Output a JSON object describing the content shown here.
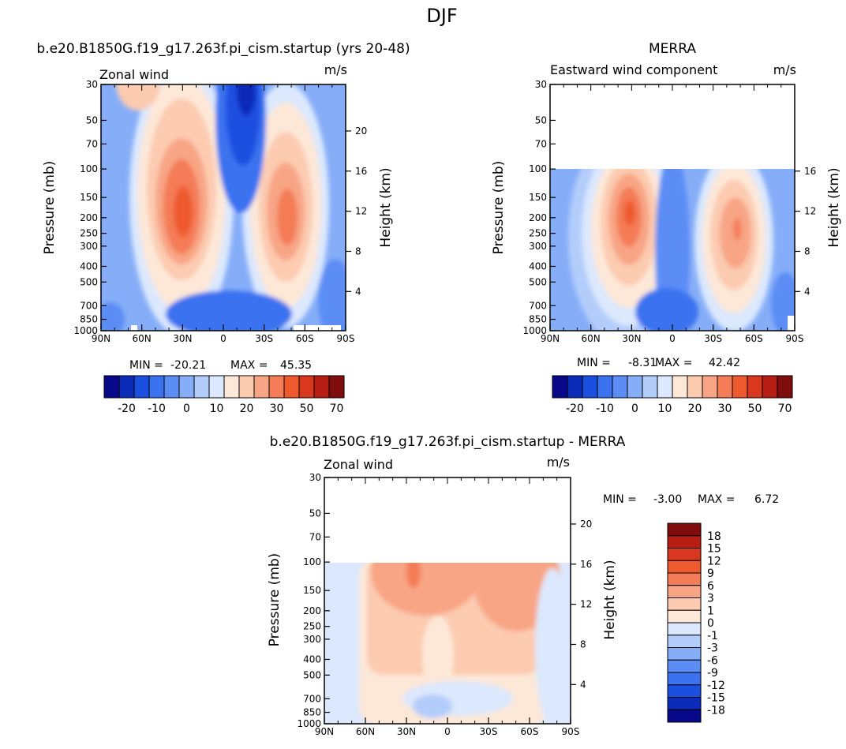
{
  "figure_title": "DJF",
  "colors": {
    "main": [
      "#08088a",
      "#0a2cb8",
      "#1a4fe0",
      "#3a72f0",
      "#5b8df5",
      "#86aef8",
      "#b3cdfb",
      "#dbe8fd",
      "#fde8d8",
      "#fccbb0",
      "#f8a585",
      "#f47c56",
      "#ee5a2e",
      "#d9381e",
      "#b71d12",
      "#800d0d"
    ],
    "diff": [
      "#08088a",
      "#0a2cb8",
      "#1a4fe0",
      "#3a72f0",
      "#5b8df5",
      "#86aef8",
      "#b3cdfb",
      "#dbe8fd",
      "#fde8d8",
      "#fccbb0",
      "#f8a585",
      "#f47c56",
      "#ee5a2e",
      "#d9381e",
      "#b71d12",
      "#800d0d"
    ]
  },
  "chart_data": [
    {
      "type": "heatmap",
      "title": "b.e20.B1850G.f19_g17.263f.pi_cism.startup (yrs 20-48)",
      "left_label": "Zonal wind",
      "units": "m/s",
      "xlabel": "",
      "ylabel": "Pressure (mb)",
      "ylabel_right": "Height (km)",
      "x_ticks": [
        "90N",
        "60N",
        "30N",
        "0",
        "30S",
        "60S",
        "90S"
      ],
      "y_ticks": [
        "30",
        "50",
        "70",
        "100",
        "150",
        "200",
        "250",
        "300",
        "400",
        "500",
        "700",
        "850",
        "1000"
      ],
      "y_ticks_right": [
        "20",
        "16",
        "12",
        "8",
        "4"
      ],
      "stats": {
        "min_label": "MIN =",
        "min": "-20.21",
        "max_label": "MAX =",
        "max": "45.35"
      },
      "colorbar": {
        "orientation": "horizontal",
        "labels": [
          "-20",
          "-10",
          "0",
          "10",
          "20",
          "30",
          "50",
          "70"
        ]
      },
      "data_top_pressure": 30,
      "jets": [
        {
          "lat": 30,
          "pressure": 200,
          "peak": 45.35
        },
        {
          "lat": -48,
          "pressure": 210,
          "peak": 36
        }
      ],
      "easterly": {
        "lat": -12,
        "pressure": 30,
        "min": -20.21
      }
    },
    {
      "type": "heatmap",
      "title": "MERRA",
      "left_label": "Eastward wind component",
      "units": "m/s",
      "xlabel": "",
      "ylabel": "Pressure (mb)",
      "ylabel_right": "Height (km)",
      "x_ticks": [
        "90N",
        "60N",
        "30N",
        "0",
        "30S",
        "60S",
        "90S"
      ],
      "y_ticks": [
        "30",
        "50",
        "70",
        "100",
        "150",
        "200",
        "250",
        "300",
        "400",
        "500",
        "700",
        "850",
        "1000"
      ],
      "y_ticks_right": [
        "16",
        "12",
        "8",
        "4"
      ],
      "stats": {
        "min_label": "MIN =",
        "min": "-8.31",
        "max_label": "MAX =",
        "max": "42.42"
      },
      "colorbar": {
        "orientation": "horizontal",
        "labels": [
          "-20",
          "-10",
          "0",
          "10",
          "20",
          "30",
          "50",
          "70"
        ]
      },
      "data_top_pressure": 100,
      "jets": [
        {
          "lat": 30,
          "pressure": 190,
          "peak": 42.42
        },
        {
          "lat": -48,
          "pressure": 240,
          "peak": 38
        }
      ],
      "easterly": {
        "lat": -5,
        "pressure": 700,
        "min": -8.31
      }
    },
    {
      "type": "heatmap",
      "title": "b.e20.B1850G.f19_g17.263f.pi_cism.startup - MERRA",
      "left_label": "Zonal wind",
      "units": "m/s",
      "xlabel": "",
      "ylabel": "Pressure (mb)",
      "ylabel_right": "Height (km)",
      "x_ticks": [
        "90N",
        "60N",
        "30N",
        "0",
        "30S",
        "60S",
        "90S"
      ],
      "y_ticks": [
        "30",
        "50",
        "70",
        "100",
        "150",
        "200",
        "250",
        "300",
        "400",
        "500",
        "700",
        "850",
        "1000"
      ],
      "y_ticks_right": [
        "20",
        "16",
        "12",
        "8",
        "4"
      ],
      "stats": {
        "min_label": "MIN =",
        "min": "-3.00",
        "max_label": "MAX =",
        "max": "6.72"
      },
      "colorbar": {
        "orientation": "vertical",
        "labels": [
          "18",
          "15",
          "12",
          "9",
          "6",
          "3",
          "1",
          "0",
          "-1",
          "-3",
          "-6",
          "-9",
          "-12",
          "-15",
          "-18"
        ]
      },
      "data_top_pressure": 100
    }
  ]
}
